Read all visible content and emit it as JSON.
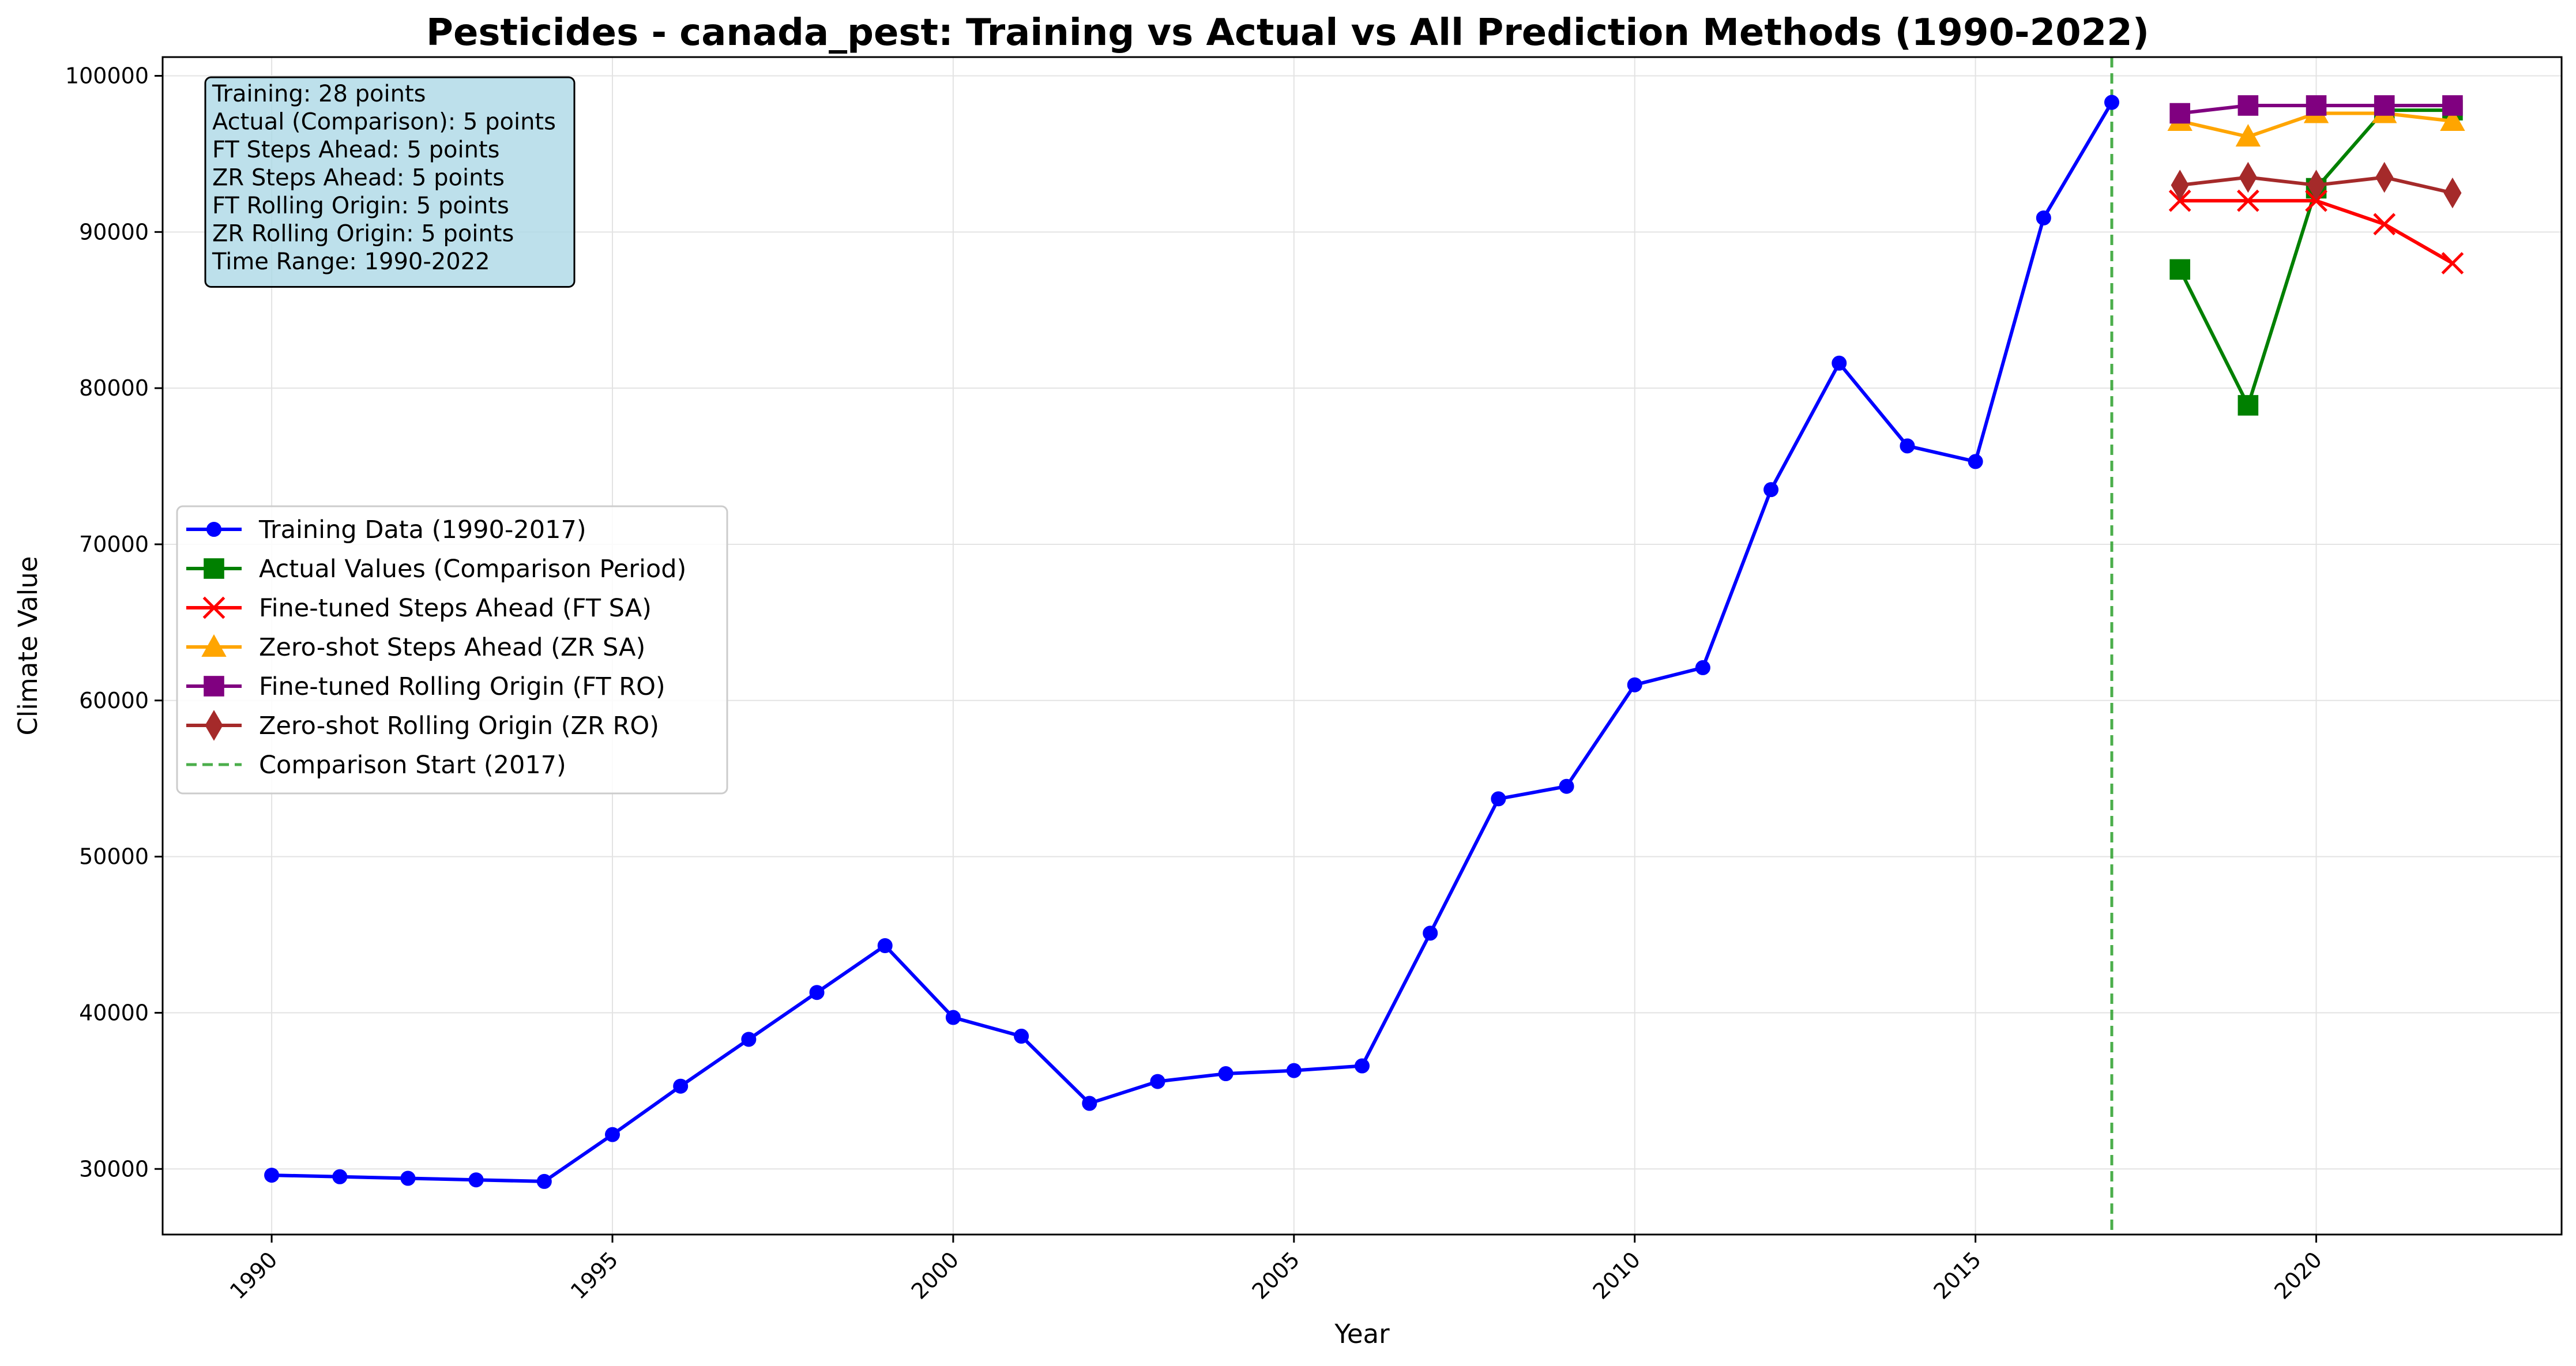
{
  "chart_data": {
    "type": "line",
    "title": "Pesticides - canada_pest: Training vs Actual vs All Prediction Methods (1990-2022)",
    "xlabel": "Year",
    "ylabel": "Climate Value",
    "xlim": [
      1988.4,
      2023.6
    ],
    "ylim": [
      25800,
      101200
    ],
    "x_ticks": [
      1990,
      1995,
      2000,
      2005,
      2010,
      2015,
      2020
    ],
    "y_ticks": [
      30000,
      40000,
      50000,
      60000,
      70000,
      80000,
      90000,
      100000
    ],
    "grid": true,
    "legend_position": "center-left",
    "series": [
      {
        "name": "Training Data (1990-2017)",
        "color": "#0000ff",
        "marker": "circle",
        "x": [
          1990,
          1991,
          1992,
          1993,
          1994,
          1995,
          1996,
          1997,
          1998,
          1999,
          2000,
          2001,
          2002,
          2003,
          2004,
          2005,
          2006,
          2007,
          2008,
          2009,
          2010,
          2011,
          2012,
          2013,
          2014,
          2015,
          2016,
          2017
        ],
        "y": [
          29600,
          29500,
          29400,
          29300,
          29200,
          32200,
          35300,
          38300,
          41300,
          44300,
          39700,
          38500,
          34200,
          35600,
          36100,
          36300,
          36600,
          45100,
          53700,
          54500,
          61000,
          62100,
          73500,
          81600,
          76300,
          75300,
          90900,
          98300
        ]
      },
      {
        "name": "Actual Values (Comparison Period)",
        "color": "#008000",
        "marker": "square",
        "x": [
          2018,
          2019,
          2020,
          2021,
          2022
        ],
        "y": [
          87600,
          78900,
          92800,
          97800,
          97800
        ]
      },
      {
        "name": "Fine-tuned Steps Ahead (FT SA)",
        "color": "#ff0000",
        "marker": "x",
        "x": [
          2018,
          2019,
          2020,
          2021,
          2022
        ],
        "y": [
          92000,
          92000,
          92000,
          90500,
          88000
        ]
      },
      {
        "name": "Zero-shot Steps Ahead (ZR SA)",
        "color": "#ffa500",
        "marker": "triangle",
        "x": [
          2018,
          2019,
          2020,
          2021,
          2022
        ],
        "y": [
          97100,
          96100,
          97600,
          97600,
          97100
        ]
      },
      {
        "name": "Fine-tuned Rolling Origin (FT RO)",
        "color": "#800080",
        "marker": "square",
        "x": [
          2018,
          2019,
          2020,
          2021,
          2022
        ],
        "y": [
          97600,
          98100,
          98100,
          98100,
          98100
        ]
      },
      {
        "name": "Zero-shot Rolling Origin (ZR RO)",
        "color": "#a52a2a",
        "marker": "diamond",
        "x": [
          2018,
          2019,
          2020,
          2021,
          2022
        ],
        "y": [
          93000,
          93500,
          93000,
          93500,
          92500
        ]
      }
    ],
    "vline": {
      "name": "Comparison Start (2017)",
      "x": 2017,
      "color": "#2ca02c",
      "style": "dashed"
    },
    "info_box": {
      "background": "#add8e6",
      "lines": [
        "Training: 28 points",
        "Actual (Comparison): 5 points",
        "FT Steps Ahead: 5 points",
        "ZR Steps Ahead: 5 points",
        "FT Rolling Origin: 5 points",
        "ZR Rolling Origin: 5 points",
        "Time Range: 1990-2022"
      ]
    }
  }
}
